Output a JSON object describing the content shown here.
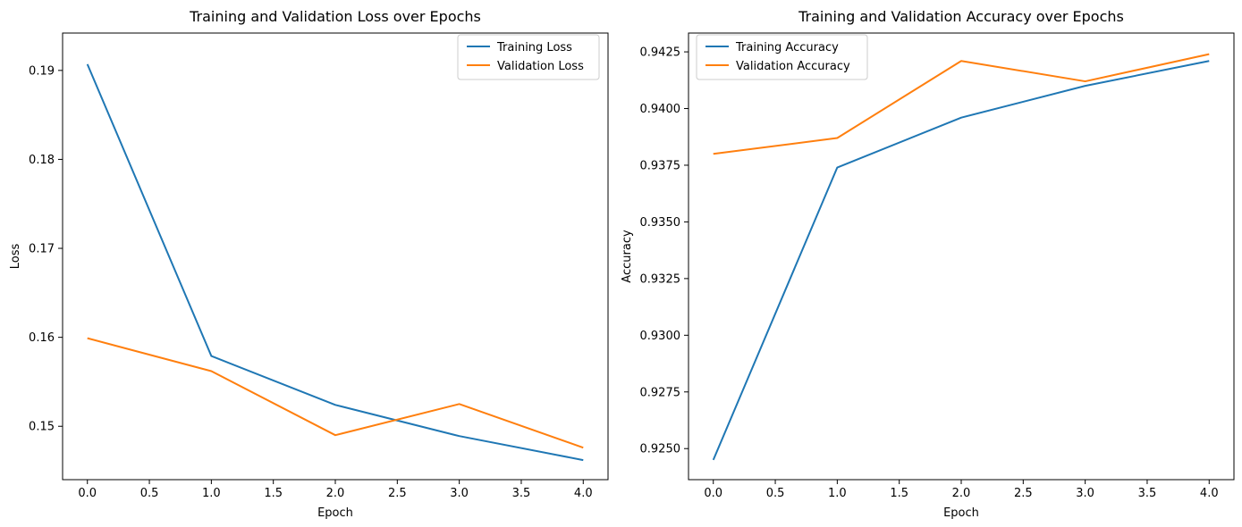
{
  "chart_data": [
    {
      "type": "line",
      "title": "Training and Validation Loss over Epochs",
      "xlabel": "Epoch",
      "ylabel": "Loss",
      "x": [
        0,
        1,
        2,
        3,
        4
      ],
      "xlim": [
        -0.2,
        4.2
      ],
      "ylim": [
        0.144,
        0.1942
      ],
      "xticks": [
        "0.0",
        "0.5",
        "1.0",
        "1.5",
        "2.0",
        "2.5",
        "3.0",
        "3.5",
        "4.0"
      ],
      "yticks": [
        "0.15",
        "0.16",
        "0.17",
        "0.18",
        "0.19"
      ],
      "legend": "top-right",
      "grid": false,
      "series": [
        {
          "name": "Training Loss",
          "color": "#1f77b4",
          "values": [
            0.1907,
            0.1579,
            0.1524,
            0.1489,
            0.1462
          ]
        },
        {
          "name": "Validation Loss",
          "color": "#ff7f0e",
          "values": [
            0.1599,
            0.1562,
            0.149,
            0.1525,
            0.1476
          ]
        }
      ]
    },
    {
      "type": "line",
      "title": "Training and Validation Accuracy over Epochs",
      "xlabel": "Epoch",
      "ylabel": "Accuracy",
      "x": [
        0,
        1,
        2,
        3,
        4
      ],
      "xlim": [
        -0.2,
        4.2
      ],
      "ylim": [
        0.92363,
        0.94333
      ],
      "xticks": [
        "0.0",
        "0.5",
        "1.0",
        "1.5",
        "2.0",
        "2.5",
        "3.0",
        "3.5",
        "4.0"
      ],
      "yticks": [
        "0.9250",
        "0.9275",
        "0.9300",
        "0.9325",
        "0.9350",
        "0.9375",
        "0.9400",
        "0.9425"
      ],
      "legend": "top-left",
      "grid": false,
      "series": [
        {
          "name": "Training Accuracy",
          "color": "#1f77b4",
          "values": [
            0.9245,
            0.9374,
            0.9396,
            0.941,
            0.9421
          ]
        },
        {
          "name": "Validation Accuracy",
          "color": "#ff7f0e",
          "values": [
            0.938,
            0.9387,
            0.9421,
            0.9412,
            0.9424
          ]
        }
      ]
    }
  ]
}
